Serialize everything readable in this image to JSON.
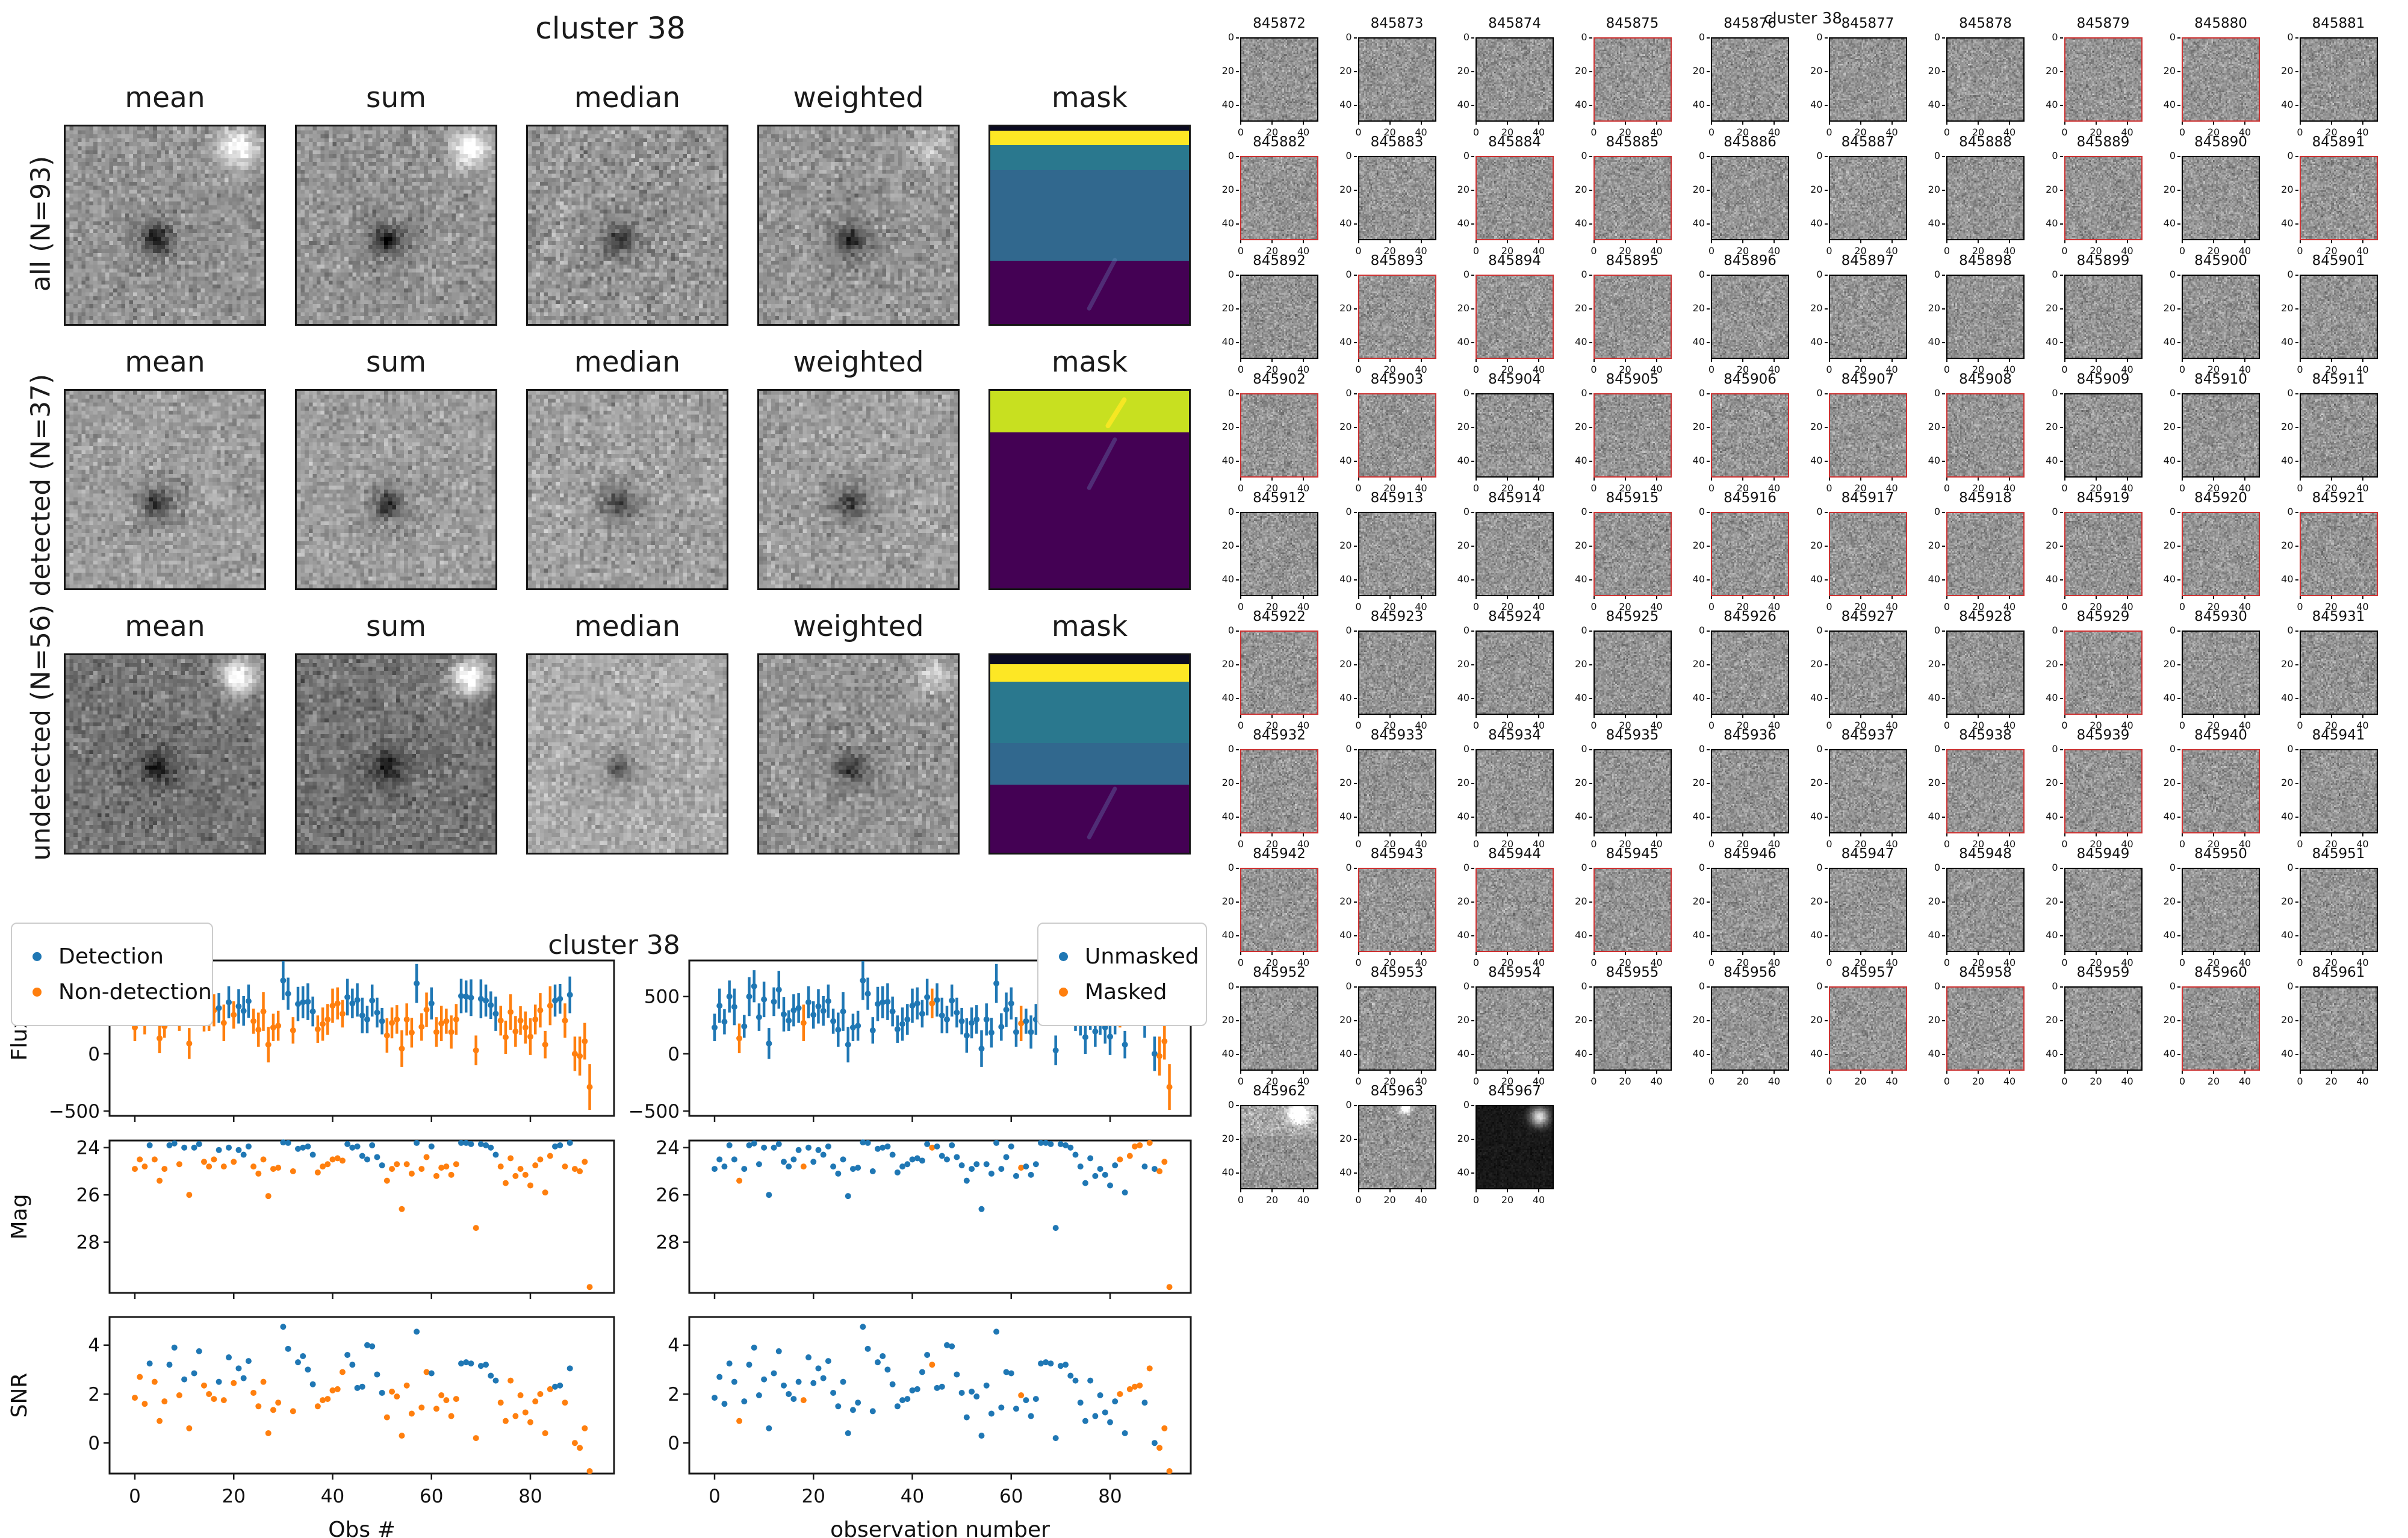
{
  "left_figure": {
    "title": "cluster 38",
    "columns": [
      "mean",
      "sum",
      "median",
      "weighted",
      "mask"
    ],
    "rows": [
      {
        "label": "all (N=93)",
        "stamps": [
          {
            "b": 148,
            "s": 26,
            "src": 90,
            "blob": 120
          },
          {
            "b": 148,
            "s": 26,
            "src": 90,
            "blob": 120
          },
          {
            "b": 150,
            "s": 30,
            "src": 70,
            "blob": 0
          },
          {
            "b": 150,
            "s": 27,
            "src": 80,
            "blob": 40
          }
        ],
        "mask": [
          {
            "c": "#0b0b22",
            "h": 0.02
          },
          {
            "c": "#fde725",
            "h": 0.075
          },
          {
            "c": "#2a788e",
            "h": 0.125
          },
          {
            "c": "#31688e",
            "h": 0.46
          },
          {
            "c": "#440154",
            "h": 0.32
          }
        ]
      },
      {
        "label": "detected (N=37)",
        "stamps": [
          {
            "b": 158,
            "s": 24,
            "src": 85,
            "blob": 0
          },
          {
            "b": 158,
            "s": 24,
            "src": 85,
            "blob": 0
          },
          {
            "b": 160,
            "s": 26,
            "src": 75,
            "blob": 0
          },
          {
            "b": 158,
            "s": 25,
            "src": 80,
            "blob": 0
          }
        ],
        "mask": [
          {
            "c": "#c8e020",
            "h": 0.21
          },
          {
            "c": "#440154",
            "h": 0.79
          }
        ]
      },
      {
        "label": "undetected (N=56)",
        "stamps": [
          {
            "b": 118,
            "s": 26,
            "src": 75,
            "blob": 150
          },
          {
            "b": 118,
            "s": 26,
            "src": 75,
            "blob": 150
          },
          {
            "b": 170,
            "s": 24,
            "src": 60,
            "blob": 0
          },
          {
            "b": 148,
            "s": 27,
            "src": 75,
            "blob": 60
          }
        ],
        "mask": [
          {
            "c": "#0b0b22",
            "h": 0.045
          },
          {
            "c": "#fde725",
            "h": 0.09
          },
          {
            "c": "#2a788e",
            "h": 0.31
          },
          {
            "c": "#31688e",
            "h": 0.21
          },
          {
            "c": "#440154",
            "h": 0.345
          }
        ]
      }
    ]
  },
  "chart_data": {
    "type": "scatter",
    "title": "cluster 38",
    "xlabel_left": "Obs #",
    "xlabel_right": "observation number",
    "xticks": [
      0,
      20,
      40,
      60,
      80
    ],
    "rows": [
      {
        "label": "Flux",
        "yticks": [
          500,
          0,
          -500
        ],
        "ytop": 815,
        "ybottom": -542,
        "errorbars": true
      },
      {
        "label": "Mag",
        "yticks": [
          24,
          26,
          28
        ],
        "ytop": 23.7,
        "ybottom": 30.15,
        "errorbars": false
      },
      {
        "label": "SNR",
        "yticks": [
          4,
          2,
          0
        ],
        "ytop": 5.15,
        "ybottom": -1.25,
        "errorbars": false
      }
    ],
    "legend_left": [
      {
        "label": "Detection",
        "color": "#1f77b4"
      },
      {
        "label": "Non-detection",
        "color": "#ff7f0e"
      }
    ],
    "legend_right": [
      {
        "label": "Unmasked",
        "color": "#1f77b4"
      },
      {
        "label": "Masked",
        "color": "#ff7f0e"
      }
    ],
    "colors": {
      "blue": "#1f77b4",
      "orange": "#ff7f0e"
    },
    "detected_obs": [
      3,
      7,
      8,
      10,
      12,
      13,
      17,
      19,
      21,
      22,
      23,
      30,
      31,
      33,
      34,
      35,
      36,
      43,
      44,
      45,
      46,
      47,
      48,
      49,
      50,
      57,
      60,
      66,
      67,
      68,
      70,
      71,
      72,
      73,
      85,
      86,
      88
    ],
    "masked_obs": [
      5,
      18,
      44,
      62,
      82,
      84,
      85,
      86,
      88,
      90,
      91,
      92
    ],
    "flux": [
      230,
      420,
      280,
      500,
      410,
      135,
      240,
      500,
      590,
      320,
      475,
      90,
      455,
      560,
      345,
      290,
      380,
      400,
      270,
      450,
      340,
      415,
      375,
      460,
      285,
      210,
      370,
      80,
      230,
      245,
      640,
      525,
      205,
      435,
      450,
      455,
      370,
      215,
      260,
      300,
      420,
      440,
      350,
      495,
      440,
      470,
      335,
      300,
      465,
      360,
      285,
      160,
      270,
      300,
      45,
      300,
      185,
      615,
      235,
      385,
      440,
      190,
      265,
      285,
      190,
      300,
      505,
      500,
      490,
      30,
      480,
      465,
      425,
      350,
      290,
      145,
      365,
      195,
      290,
      230,
      150,
      300,
      380,
      80,
      420,
      465,
      480,
      290,
      515,
      0,
      -20,
      110,
      -290
    ],
    "flux_err": [
      120,
      150,
      110,
      140,
      160,
      130,
      100,
      170,
      140,
      120,
      155,
      135,
      125,
      165,
      150,
      90,
      140,
      130,
      160,
      140,
      120,
      150,
      130,
      145,
      110,
      150,
      170,
      155,
      120,
      130,
      170,
      140,
      115,
      150,
      140,
      160,
      130,
      120,
      145,
      135,
      150,
      140,
      120,
      160,
      130,
      145,
      155,
      120,
      140,
      130,
      115,
      150,
      135,
      125,
      160,
      140,
      130,
      170,
      120,
      150,
      140,
      130,
      155,
      110,
      145,
      135,
      150,
      140,
      160,
      130,
      170,
      140,
      120,
      150,
      130,
      145,
      155,
      135,
      125,
      140,
      160,
      130,
      150,
      120,
      170,
      140,
      130,
      150,
      160,
      150,
      170,
      160,
      200
    ],
    "mag": [
      24.9,
      24.5,
      24.8,
      23.9,
      24.5,
      25.4,
      24.9,
      23.9,
      23.82,
      24.7,
      24.0,
      26.0,
      24.0,
      23.85,
      24.6,
      24.8,
      24.5,
      24.1,
      24.8,
      24.0,
      24.6,
      24.1,
      24.3,
      23.95,
      24.8,
      25.1,
      24.5,
      26.05,
      24.9,
      24.85,
      23.78,
      23.8,
      25.0,
      24.05,
      24.0,
      23.95,
      24.3,
      25.05,
      24.8,
      24.7,
      24.5,
      24.45,
      24.55,
      23.85,
      24.0,
      23.95,
      24.35,
      24.5,
      23.9,
      24.4,
      24.75,
      25.4,
      24.9,
      24.7,
      26.6,
      24.7,
      25.1,
      23.8,
      24.9,
      24.4,
      23.95,
      25.2,
      24.85,
      24.8,
      25.15,
      24.7,
      23.8,
      23.8,
      23.85,
      27.4,
      23.85,
      23.9,
      24.0,
      24.3,
      24.8,
      25.5,
      24.45,
      25.2,
      24.9,
      25.15,
      25.6,
      24.75,
      24.5,
      25.9,
      24.35,
      23.95,
      23.9,
      24.8,
      23.8,
      24.9,
      25.0,
      24.6,
      29.9
    ],
    "snr": [
      1.85,
      2.7,
      1.6,
      3.25,
      2.5,
      0.9,
      1.7,
      3.2,
      3.9,
      1.95,
      2.6,
      0.6,
      2.85,
      3.75,
      2.35,
      2.0,
      1.8,
      2.5,
      1.75,
      3.5,
      2.45,
      3.05,
      2.65,
      3.35,
      2.05,
      1.5,
      2.5,
      0.4,
      1.35,
      1.65,
      4.75,
      3.85,
      1.3,
      3.3,
      3.55,
      3.0,
      2.4,
      1.5,
      1.75,
      1.8,
      2.15,
      2.2,
      2.9,
      3.6,
      3.2,
      2.25,
      2.3,
      4.0,
      3.95,
      2.8,
      2.05,
      1.05,
      2.1,
      1.9,
      0.3,
      2.35,
      1.2,
      4.55,
      1.45,
      2.9,
      2.85,
      1.4,
      1.95,
      1.75,
      1.1,
      1.8,
      3.25,
      3.3,
      3.25,
      0.2,
      3.15,
      3.2,
      2.75,
      2.55,
      1.65,
      0.9,
      2.55,
      1.1,
      1.95,
      1.25,
      0.85,
      1.7,
      2.0,
      0.4,
      2.2,
      2.3,
      2.35,
      1.65,
      3.05,
      0.0,
      -0.2,
      0.6,
      -1.15
    ]
  },
  "right_figure": {
    "title": "cluster 38",
    "axis_ticks": [
      0,
      20,
      40
    ],
    "flag_color": "#cd3232",
    "ids": [
      "845872",
      "845873",
      "845874",
      "845875",
      "845876",
      "845877",
      "845878",
      "845879",
      "845880",
      "845881",
      "845882",
      "845883",
      "845884",
      "845885",
      "845886",
      "845887",
      "845888",
      "845889",
      "845890",
      "845891",
      "845892",
      "845893",
      "845894",
      "845895",
      "845896",
      "845897",
      "845898",
      "845899",
      "845900",
      "845901",
      "845902",
      "845903",
      "845904",
      "845905",
      "845906",
      "845907",
      "845908",
      "845909",
      "845910",
      "845911",
      "845912",
      "845913",
      "845914",
      "845915",
      "845916",
      "845917",
      "845918",
      "845919",
      "845920",
      "845921",
      "845922",
      "845923",
      "845924",
      "845925",
      "845926",
      "845927",
      "845928",
      "845929",
      "845930",
      "845931",
      "845932",
      "845933",
      "845934",
      "845935",
      "845936",
      "845937",
      "845938",
      "845939",
      "845940",
      "845941",
      "845942",
      "845943",
      "845944",
      "845945",
      "845946",
      "845947",
      "845948",
      "845949",
      "845950",
      "845951",
      "845952",
      "845953",
      "845954",
      "845955",
      "845956",
      "845957",
      "845958",
      "845959",
      "845960",
      "845961",
      "845962",
      "845963",
      "845967"
    ],
    "flagged_ids": [
      "845875",
      "845879",
      "845880",
      "845882",
      "845884",
      "845885",
      "845889",
      "845891",
      "845893",
      "845894",
      "845895",
      "845902",
      "845903",
      "845905",
      "845906",
      "845907",
      "845908",
      "845915",
      "845916",
      "845917",
      "845918",
      "845919",
      "845920",
      "845921",
      "845922",
      "845929",
      "845932",
      "845938",
      "845939",
      "845940",
      "845942",
      "845943",
      "845944",
      "845945",
      "845957",
      "845958",
      "845960"
    ],
    "special": {
      "845962": {
        "blob": 170,
        "bx": 0.75,
        "by": 0.08,
        "sg": 4.5,
        "lift": 20
      },
      "845963": {
        "blob": 150,
        "bx": 0.6,
        "by": 0.02,
        "sg": 2.4
      },
      "845967": {
        "b": 24,
        "s": 9,
        "blob": 200,
        "bx": 0.82,
        "by": 0.12,
        "sg": 4.0
      }
    }
  }
}
